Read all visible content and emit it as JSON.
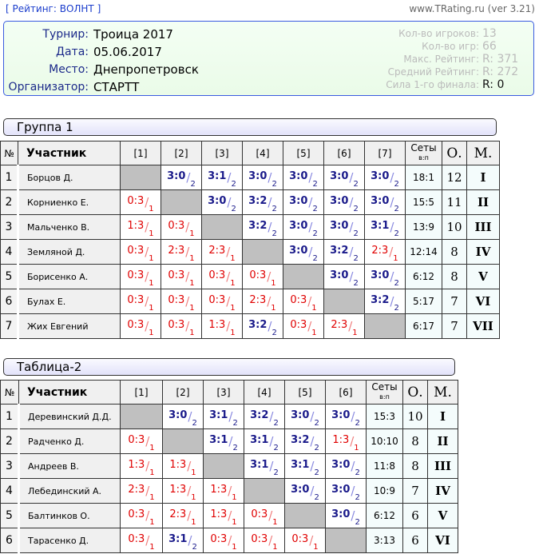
{
  "header": {
    "rating_link": "[ Рейтинг: ВОЛНТ ]",
    "site": "www.TRating.ru (ver 3.21)"
  },
  "info": {
    "tournament_label": "Турнир:",
    "tournament": "Троица 2017",
    "date_label": "Дата:",
    "date": "05.06.2017",
    "place_label": "Место:",
    "place": "Днепропетровск",
    "organizer_label": "Организатор:",
    "organizer": "СТАРТТ",
    "stats": [
      {
        "label": "Кол-во игроков:",
        "value": "13"
      },
      {
        "label": "Кол-во игр:",
        "value": "66"
      },
      {
        "label": "Макс. Рейтинг:",
        "value": "R: 371"
      },
      {
        "label": "Средний Рейтинг:",
        "value": "R: 272"
      },
      {
        "label": "Сила 1-го финала:",
        "value": "R:   0"
      }
    ]
  },
  "columns": {
    "num": "№",
    "player": "Участник",
    "sets": "Сеты",
    "sets_sub": "в:п",
    "points": "О.",
    "place": "М."
  },
  "colors": {
    "win": "#1a1a8a",
    "loss": "#e00000",
    "diag": "#c0c0c0"
  },
  "groups": [
    {
      "title": "Группа 1",
      "headers": [
        "[1]",
        "[2]",
        "[3]",
        "[4]",
        "[5]",
        "[6]",
        "[7]"
      ],
      "rows": [
        {
          "num": "1",
          "name": "Борцов Д.",
          "cells": [
            null,
            "3:0/2",
            "3:1/2",
            "3:0/2",
            "3:0/2",
            "3:0/2",
            "3:0/2"
          ],
          "sets": "18:1",
          "points": "12",
          "place": "I"
        },
        {
          "num": "2",
          "name": "Корниенко Е.",
          "cells": [
            "0:3/1",
            null,
            "3:0/2",
            "3:2/2",
            "3:0/2",
            "3:0/2",
            "3:0/2"
          ],
          "sets": "15:5",
          "points": "11",
          "place": "II"
        },
        {
          "num": "3",
          "name": "Мальченко В.",
          "cells": [
            "1:3/1",
            "0:3/1",
            null,
            "3:2/2",
            "3:0/2",
            "3:0/2",
            "3:1/2"
          ],
          "sets": "13:9",
          "points": "10",
          "place": "III"
        },
        {
          "num": "4",
          "name": "Земляной Д.",
          "cells": [
            "0:3/1",
            "2:3/1",
            "2:3/1",
            null,
            "3:0/2",
            "3:2/2",
            "2:3/1"
          ],
          "sets": "12:14",
          "points": "8",
          "place": "IV"
        },
        {
          "num": "5",
          "name": "Борисенко А.",
          "cells": [
            "0:3/1",
            "0:3/1",
            "0:3/1",
            "0:3/1",
            null,
            "3:0/2",
            "3:0/2"
          ],
          "sets": "6:12",
          "points": "8",
          "place": "V"
        },
        {
          "num": "6",
          "name": "Булах Е.",
          "cells": [
            "0:3/1",
            "0:3/1",
            "0:3/1",
            "2:3/1",
            "0:3/1",
            null,
            "3:2/2"
          ],
          "sets": "5:17",
          "points": "7",
          "place": "VI"
        },
        {
          "num": "7",
          "name": "Жих Евгений",
          "cells": [
            "0:3/1",
            "0:3/1",
            "1:3/1",
            "3:2/2",
            "0:3/1",
            "2:3/1",
            null
          ],
          "sets": "6:17",
          "points": "7",
          "place": "VII"
        }
      ]
    },
    {
      "title": "Таблица-2",
      "headers": [
        "[1]",
        "[2]",
        "[3]",
        "[4]",
        "[5]",
        "[6]"
      ],
      "rows": [
        {
          "num": "1",
          "name": "Деревинский Д.Д.",
          "cells": [
            null,
            "3:0/2",
            "3:1/2",
            "3:2/2",
            "3:0/2",
            "3:0/2"
          ],
          "sets": "15:3",
          "points": "10",
          "place": "I"
        },
        {
          "num": "2",
          "name": "Радченко Д.",
          "cells": [
            "0:3/1",
            null,
            "3:1/2",
            "3:1/2",
            "3:2/2",
            "1:3/1"
          ],
          "sets": "10:10",
          "points": "8",
          "place": "II"
        },
        {
          "num": "3",
          "name": "Андреев В.",
          "cells": [
            "1:3/1",
            "1:3/1",
            null,
            "3:1/2",
            "3:1/2",
            "3:0/2"
          ],
          "sets": "11:8",
          "points": "8",
          "place": "III"
        },
        {
          "num": "4",
          "name": "Лебединский А.",
          "cells": [
            "2:3/1",
            "1:3/1",
            "1:3/1",
            null,
            "3:0/2",
            "3:0/2"
          ],
          "sets": "10:9",
          "points": "7",
          "place": "IV"
        },
        {
          "num": "5",
          "name": "Балтинков О.",
          "cells": [
            "0:3/1",
            "2:3/1",
            "1:3/1",
            "0:3/1",
            null,
            "3:0/2"
          ],
          "sets": "6:12",
          "points": "6",
          "place": "V"
        },
        {
          "num": "6",
          "name": "Тарасенко Д.",
          "cells": [
            "0:3/1",
            "3:1/2",
            "0:3/1",
            "0:3/1",
            "0:3/1",
            null
          ],
          "sets": "3:13",
          "points": "6",
          "place": "VI"
        }
      ]
    }
  ]
}
